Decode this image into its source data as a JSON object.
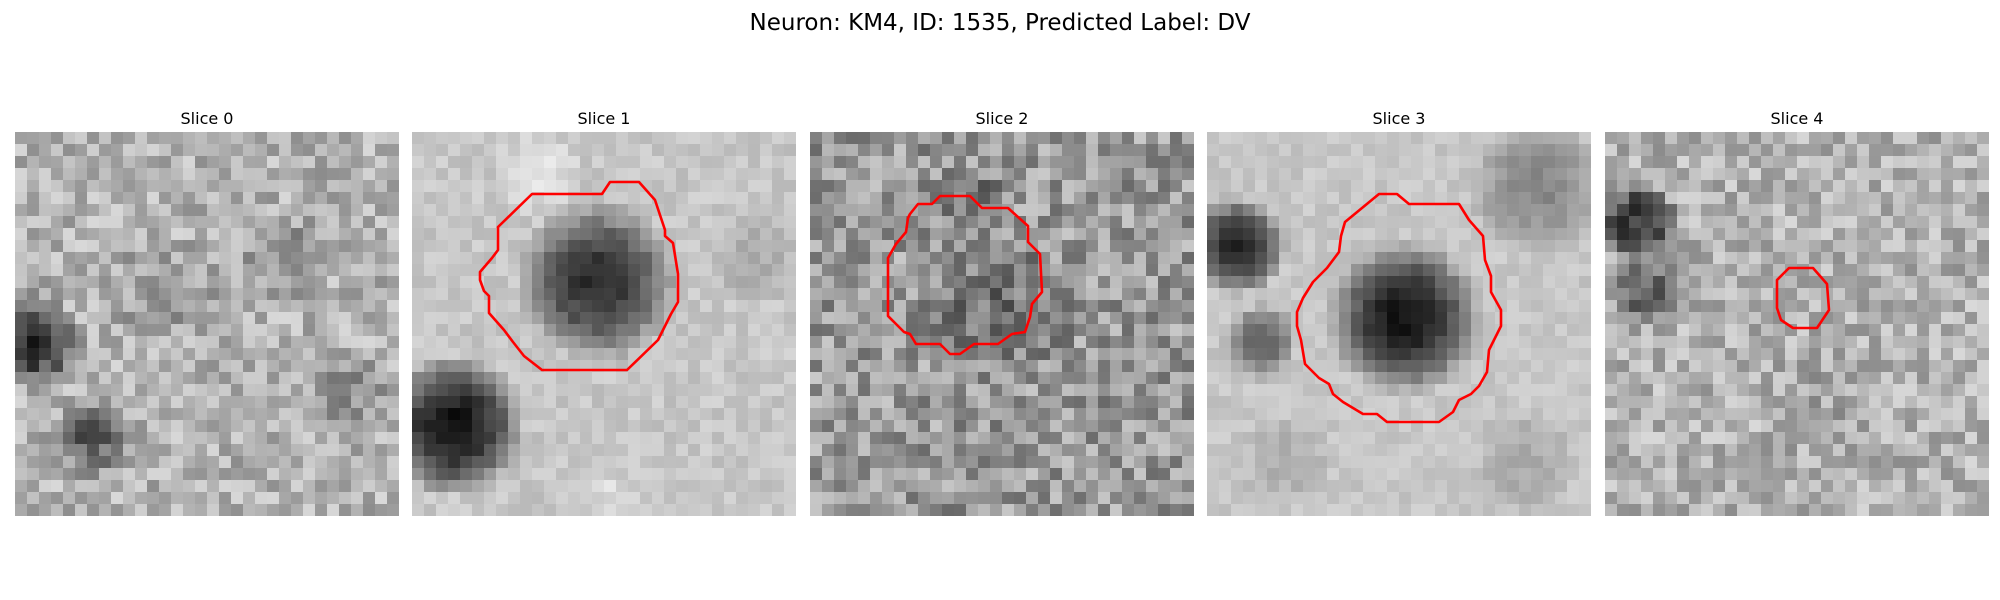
{
  "figure": {
    "suptitle": "Neuron: KM4, ID: 1535, Predicted Label: DV",
    "contour_color": "#ff0000",
    "colormap": "gray"
  },
  "panels": [
    {
      "title": "Slice 0",
      "has_contour": false
    },
    {
      "title": "Slice 1",
      "has_contour": true
    },
    {
      "title": "Slice 2",
      "has_contour": true
    },
    {
      "title": "Slice 3",
      "has_contour": true
    },
    {
      "title": "Slice 4",
      "has_contour": true
    }
  ]
}
